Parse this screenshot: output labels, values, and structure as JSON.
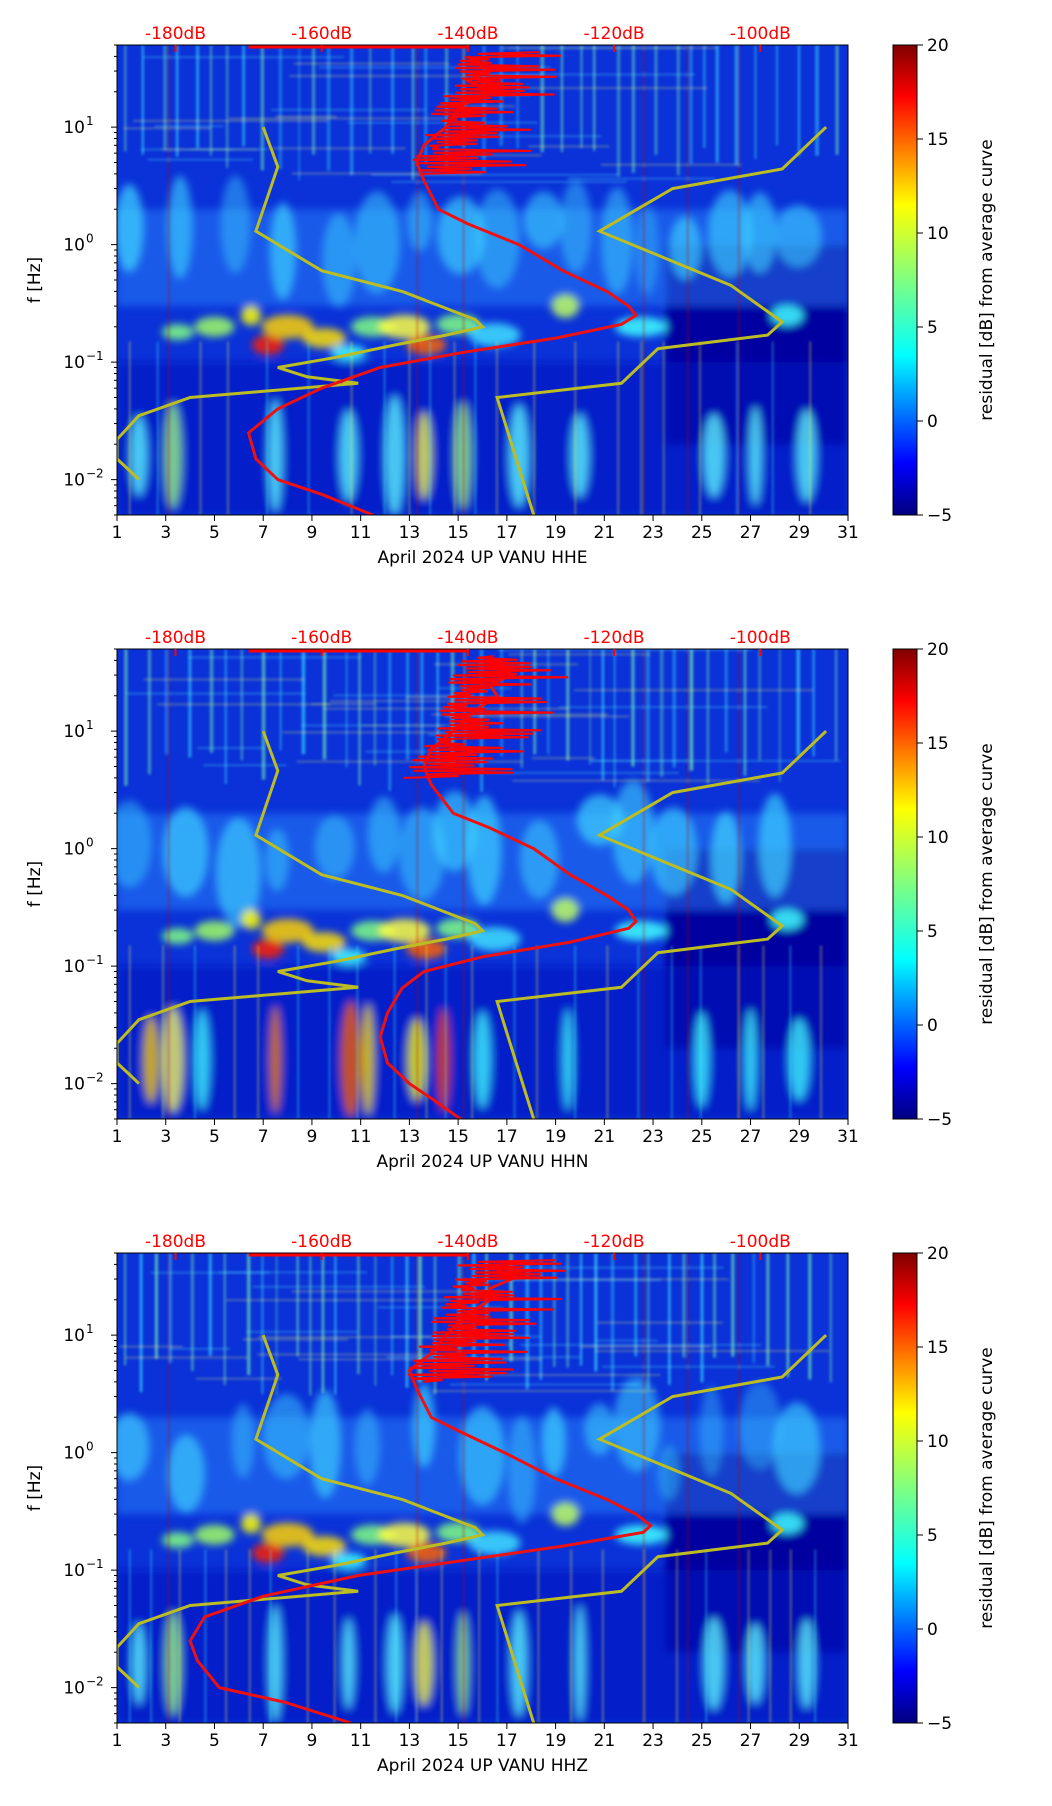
{
  "chart_data": [
    {
      "type": "heatmap",
      "xlabel": "April 2024 UP VANU  HHE",
      "ylabel": "f [Hz]",
      "x_range": [
        1,
        31
      ],
      "y_range_hz": [
        0.005,
        50
      ],
      "y_scale": "log",
      "x_ticks": [
        "1",
        "3",
        "5",
        "7",
        "9",
        "11",
        "13",
        "15",
        "17",
        "19",
        "21",
        "23",
        "25",
        "27",
        "29",
        "31"
      ],
      "y_ticks": [
        {
          "exp": "-2",
          "value": 0.01
        },
        {
          "exp": "-1",
          "value": 0.1
        },
        {
          "exp": "0",
          "value": 1
        },
        {
          "exp": "1",
          "value": 10
        }
      ],
      "top_axis_ticks": [
        "-180dB",
        "-160dB",
        "-140dB",
        "-120dB",
        "-100dB"
      ],
      "top_axis_db_range": [
        -188,
        -88
      ],
      "colorbar": {
        "label": "residual [dB] from average curve",
        "min": -5,
        "max": 20,
        "ticks": [
          "20",
          "15",
          "10",
          "5",
          "0",
          "−5"
        ]
      },
      "grid": false
    },
    {
      "type": "heatmap",
      "xlabel": "April 2024 UP VANU  HHN",
      "ylabel": "f [Hz]",
      "x_range": [
        1,
        31
      ],
      "y_range_hz": [
        0.005,
        50
      ],
      "y_scale": "log",
      "x_ticks": [
        "1",
        "3",
        "5",
        "7",
        "9",
        "11",
        "13",
        "15",
        "17",
        "19",
        "21",
        "23",
        "25",
        "27",
        "29",
        "31"
      ],
      "y_ticks": [
        {
          "exp": "-2",
          "value": 0.01
        },
        {
          "exp": "-1",
          "value": 0.1
        },
        {
          "exp": "0",
          "value": 1
        },
        {
          "exp": "1",
          "value": 10
        }
      ],
      "top_axis_ticks": [
        "-180dB",
        "-160dB",
        "-140dB",
        "-120dB",
        "-100dB"
      ],
      "top_axis_db_range": [
        -188,
        -88
      ],
      "colorbar": {
        "label": "residual [dB] from average curve",
        "min": -5,
        "max": 20,
        "ticks": [
          "20",
          "15",
          "10",
          "5",
          "0",
          "−5"
        ]
      },
      "grid": false
    },
    {
      "type": "heatmap",
      "xlabel": "April 2024 UP VANU  HHZ",
      "ylabel": "f [Hz]",
      "x_range": [
        1,
        31
      ],
      "y_range_hz": [
        0.005,
        50
      ],
      "y_scale": "log",
      "x_ticks": [
        "1",
        "3",
        "5",
        "7",
        "9",
        "11",
        "13",
        "15",
        "17",
        "19",
        "21",
        "23",
        "25",
        "27",
        "29",
        "31"
      ],
      "y_ticks": [
        {
          "exp": "-2",
          "value": 0.01
        },
        {
          "exp": "-1",
          "value": 0.1
        },
        {
          "exp": "0",
          "value": 1
        },
        {
          "exp": "1",
          "value": 10
        }
      ],
      "top_axis_ticks": [
        "-180dB",
        "-160dB",
        "-140dB",
        "-120dB",
        "-100dB"
      ],
      "top_axis_db_range": [
        -188,
        -88
      ],
      "colorbar": {
        "label": "residual [dB] from average curve",
        "min": -5,
        "max": 20,
        "ticks": [
          "20",
          "15",
          "10",
          "5",
          "0",
          "−5"
        ]
      },
      "grid": false
    }
  ],
  "overlays": {
    "noise_models": {
      "color": "#bcbd22",
      "low_noise_model": [
        [
          -168,
          10
        ],
        [
          -166,
          4.6
        ],
        [
          -169,
          1.3
        ],
        [
          -160,
          0.6
        ],
        [
          -149,
          0.4
        ],
        [
          -139,
          0.23
        ],
        [
          -138,
          0.2
        ],
        [
          -143,
          0.17
        ],
        [
          -150,
          0.14
        ],
        [
          -158,
          0.11
        ],
        [
          -166,
          0.09
        ],
        [
          -162,
          0.075
        ],
        [
          -155,
          0.066
        ],
        [
          -178,
          0.05
        ],
        [
          -185,
          0.035
        ],
        [
          -186,
          0.03
        ],
        [
          -188,
          0.022
        ],
        [
          -188,
          0.015
        ],
        [
          -186,
          0.0115
        ],
        [
          -185,
          0.01
        ]
      ],
      "high_noise_model": [
        [
          -91,
          10
        ],
        [
          -97,
          4.4
        ],
        [
          -112,
          3
        ],
        [
          -122,
          1.3
        ],
        [
          -104,
          0.45
        ],
        [
          -97,
          0.22
        ],
        [
          -99,
          0.17
        ],
        [
          -114,
          0.13
        ],
        [
          -119,
          0.066
        ],
        [
          -136,
          0.05
        ],
        [
          -131,
          0.005
        ]
      ]
    },
    "mean_psd_curve_color": "#ee1111",
    "mean_psd": [
      [
        [
          -140,
          40
        ],
        [
          -137,
          30
        ],
        [
          -140,
          25
        ],
        [
          -137,
          20
        ],
        [
          -141,
          15
        ],
        [
          -143,
          10
        ],
        [
          -146,
          7
        ],
        [
          -147,
          5
        ],
        [
          -146,
          3.5
        ],
        [
          -144,
          2
        ],
        [
          -140,
          1.5
        ],
        [
          -133,
          1.0
        ],
        [
          -127,
          0.6
        ],
        [
          -121,
          0.4
        ],
        [
          -118,
          0.3
        ],
        [
          -117,
          0.25
        ],
        [
          -119,
          0.21
        ],
        [
          -128,
          0.16
        ],
        [
          -141,
          0.12
        ],
        [
          -152,
          0.09
        ],
        [
          -160,
          0.06
        ],
        [
          -166,
          0.04
        ],
        [
          -170,
          0.025
        ],
        [
          -169,
          0.015
        ],
        [
          -166,
          0.01
        ],
        [
          -160,
          0.0075
        ],
        [
          -153,
          0.005
        ]
      ],
      [
        [
          -137,
          40
        ],
        [
          -134,
          30
        ],
        [
          -137,
          25
        ],
        [
          -136,
          20
        ],
        [
          -139,
          15
        ],
        [
          -142,
          10
        ],
        [
          -145,
          7
        ],
        [
          -146,
          5
        ],
        [
          -145,
          3.5
        ],
        [
          -142,
          2
        ],
        [
          -137,
          1.5
        ],
        [
          -131,
          1.0
        ],
        [
          -126,
          0.6
        ],
        [
          -121,
          0.4
        ],
        [
          -118,
          0.3
        ],
        [
          -117,
          0.24
        ],
        [
          -118,
          0.21
        ],
        [
          -126,
          0.16
        ],
        [
          -138,
          0.12
        ],
        [
          -146,
          0.09
        ],
        [
          -149,
          0.065
        ],
        [
          -151,
          0.04
        ],
        [
          -152,
          0.025
        ],
        [
          -151,
          0.015
        ],
        [
          -148,
          0.01
        ],
        [
          -145,
          0.0075
        ],
        [
          -141,
          0.005
        ]
      ],
      [
        [
          -137,
          40
        ],
        [
          -134,
          30
        ],
        [
          -137,
          25
        ],
        [
          -137,
          20
        ],
        [
          -140,
          15
        ],
        [
          -143,
          10
        ],
        [
          -145,
          7
        ],
        [
          -148,
          5
        ],
        [
          -147,
          3.5
        ],
        [
          -145,
          2
        ],
        [
          -141,
          1.5
        ],
        [
          -135,
          1.0
        ],
        [
          -128,
          0.6
        ],
        [
          -121,
          0.4
        ],
        [
          -117,
          0.3
        ],
        [
          -115,
          0.24
        ],
        [
          -116,
          0.21
        ],
        [
          -127,
          0.16
        ],
        [
          -141,
          0.12
        ],
        [
          -155,
          0.09
        ],
        [
          -168,
          0.06
        ],
        [
          -176,
          0.04
        ],
        [
          -178,
          0.025
        ],
        [
          -177,
          0.017
        ],
        [
          -174,
          0.01
        ],
        [
          -165,
          0.0075
        ],
        [
          -156,
          0.005
        ]
      ]
    ],
    "colormap": [
      "#000080",
      "#0000ff",
      "#0080ff",
      "#00ffff",
      "#80ff80",
      "#ffff00",
      "#ff8000",
      "#ff0000",
      "#800000"
    ],
    "top_axis_color": "#ff0000"
  }
}
